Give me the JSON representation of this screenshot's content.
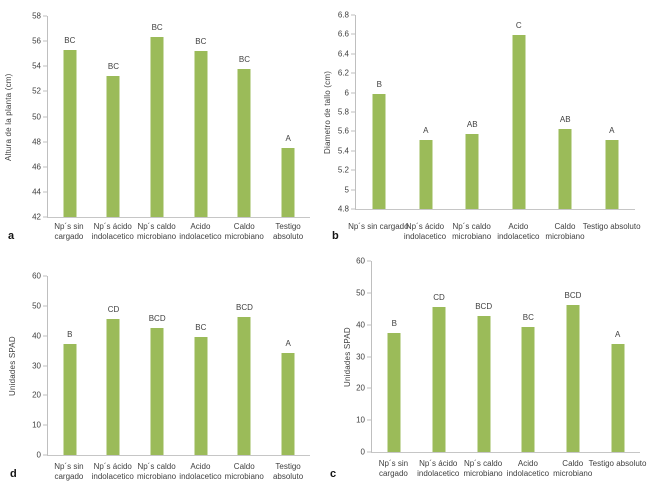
{
  "figure": {
    "background": "#ffffff",
    "bar_color": "#9BBB59",
    "axis_color": "#BFBFBF",
    "text_color": "#3F3F3F"
  },
  "chart_data": [
    {
      "type": "bar",
      "panel_letter": "a",
      "ylabel": "Altura de la planta (cm)",
      "xlabel": "",
      "title": "",
      "ylim": [
        42,
        58
      ],
      "yticks": [
        "58",
        "56",
        "54",
        "52",
        "50",
        "48",
        "46",
        "44",
        "42"
      ],
      "grid": false,
      "legend": "none",
      "categories": [
        "Np´s sin cargado",
        "Np´s ácido indolacetico",
        "Np´s caldo microbiano",
        "Acido indolacetico",
        "Caldo microbiano",
        "Testigo absoluto"
      ],
      "values": [
        55.3,
        53.2,
        56.3,
        55.2,
        53.8,
        47.5
      ],
      "bar_labels": [
        "BC",
        "BC",
        "BC",
        "BC",
        "BC",
        "A"
      ]
    },
    {
      "type": "bar",
      "panel_letter": "b",
      "ylabel": "Diametro de tallo (cm)",
      "xlabel": "",
      "title": "",
      "ylim": [
        4.8,
        6.8
      ],
      "yticks": [
        "6.8",
        "6.6",
        "6.4",
        "6.2",
        "6",
        "5.8",
        "5.6",
        "5.4",
        "5.2",
        "5",
        "4.8"
      ],
      "grid": false,
      "legend": "none",
      "categories": [
        "Np´s sin cargado",
        "Np´s ácido indolacetico",
        "Np´s caldo microbiano",
        "Acido indolacetico",
        "Caldo microbiano",
        "Testigo absoluto"
      ],
      "values": [
        5.99,
        5.51,
        5.57,
        6.59,
        5.62,
        5.51
      ],
      "bar_labels": [
        "B",
        "A",
        "AB",
        "C",
        "AB",
        "A"
      ]
    },
    {
      "type": "bar",
      "panel_letter": "d",
      "ylabel": "Unidades SPAD",
      "xlabel": "",
      "title": "",
      "ylim": [
        0,
        60
      ],
      "yticks": [
        "60",
        "50",
        "40",
        "30",
        "20",
        "10",
        "0"
      ],
      "grid": false,
      "legend": "none",
      "categories": [
        "Np´s sin cargado",
        "Np´s ácido indolacetico",
        "Np´s caldo microbiano",
        "Acido indolacetico",
        "Caldo microbiano",
        "Testigo absoluto"
      ],
      "values": [
        37.2,
        45.7,
        42.6,
        39.5,
        46.2,
        34.2
      ],
      "bar_labels": [
        "B",
        "CD",
        "BCD",
        "BC",
        "BCD",
        "A"
      ]
    },
    {
      "type": "bar",
      "panel_letter": "c",
      "ylabel": "Unidades SPAD",
      "xlabel": "",
      "title": "",
      "ylim": [
        0,
        60
      ],
      "yticks": [
        "60",
        "50",
        "40",
        "30",
        "20",
        "10",
        "0"
      ],
      "grid": false,
      "legend": "none",
      "categories": [
        "Np´s sin cargado",
        "Np´s ácido indolacetico",
        "Np´s caldo microbiano",
        "Acido indolacetico",
        "Caldo microbiano",
        "Testigo absoluto"
      ],
      "values": [
        37.3,
        45.7,
        42.7,
        39.4,
        46.3,
        34.0
      ],
      "bar_labels": [
        "B",
        "CD",
        "BCD",
        "BC",
        "BCD",
        "A"
      ]
    }
  ]
}
